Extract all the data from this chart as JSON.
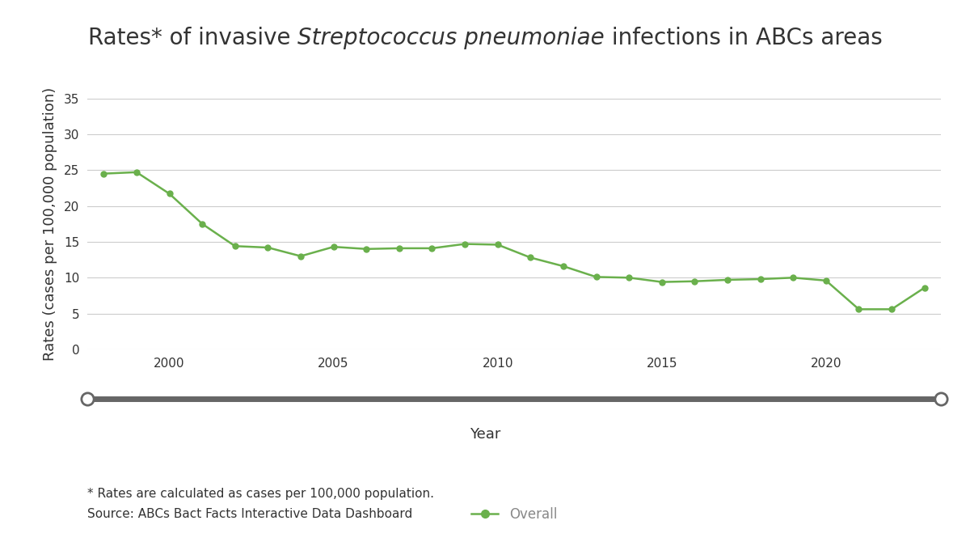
{
  "years": [
    1998,
    1999,
    2000,
    2001,
    2002,
    2003,
    2004,
    2005,
    2006,
    2007,
    2008,
    2009,
    2010,
    2011,
    2012,
    2013,
    2014,
    2015,
    2016,
    2017,
    2018,
    2019,
    2020,
    2021,
    2022,
    2023
  ],
  "values": [
    24.5,
    24.7,
    21.7,
    17.5,
    14.4,
    14.2,
    13.0,
    14.3,
    14.0,
    14.1,
    14.1,
    14.7,
    14.6,
    12.8,
    11.6,
    10.1,
    10.0,
    9.4,
    9.5,
    9.7,
    9.8,
    10.0,
    9.6,
    5.6,
    5.6,
    8.6
  ],
  "line_color": "#6ab04c",
  "marker_color": "#6ab04c",
  "title_part1": "Rates* of invasive ",
  "title_part2": "Streptococcus pneumoniae",
  "title_part3": " infections in ABCs areas",
  "ylabel": "Rates (cases per 100,000 population)",
  "xlabel": "Year",
  "legend_label": "Overall",
  "ylim": [
    0,
    35
  ],
  "yticks": [
    0,
    5,
    10,
    15,
    20,
    25,
    30,
    35
  ],
  "xlim": [
    1997.5,
    2023.5
  ],
  "xticks": [
    2000,
    2005,
    2010,
    2015,
    2020
  ],
  "grid_color": "#cccccc",
  "background_color": "#ffffff",
  "footnote1": "* Rates are calculated as cases per 100,000 population.",
  "footnote2": "Source: ABCs Bact Facts Interactive Data Dashboard",
  "title_fontsize": 20,
  "axis_label_fontsize": 13,
  "tick_fontsize": 11,
  "legend_fontsize": 12,
  "footnote_fontsize": 11,
  "text_color": "#333333",
  "slider_color": "#666666",
  "legend_text_color": "#888888"
}
